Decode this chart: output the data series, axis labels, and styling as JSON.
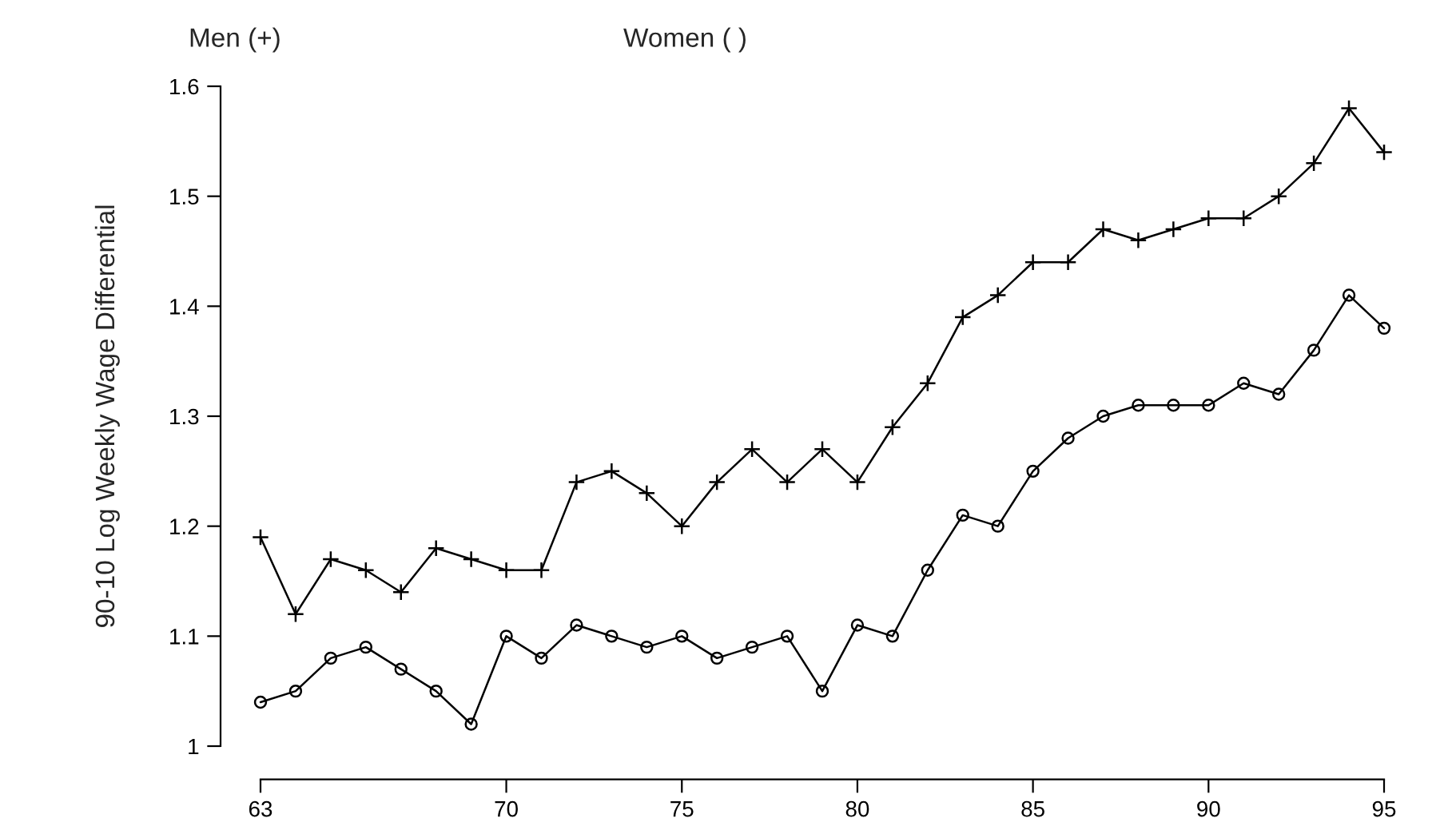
{
  "chart_data": {
    "type": "line",
    "ylabel": "90-10 Log Weekly Wage Differential",
    "annotations": [
      "Men (+)",
      "Women ( )"
    ],
    "x": [
      63,
      64,
      65,
      66,
      67,
      68,
      69,
      70,
      71,
      72,
      73,
      74,
      75,
      76,
      77,
      78,
      79,
      80,
      81,
      82,
      83,
      84,
      85,
      86,
      87,
      88,
      89,
      90,
      91,
      92,
      93,
      94,
      95
    ],
    "series": [
      {
        "color": "#000000",
        "marker": "cross",
        "values": [
          1.19,
          1.12,
          1.17,
          1.16,
          1.14,
          1.18,
          1.17,
          1.16,
          1.16,
          1.24,
          1.25,
          1.23,
          1.2,
          1.24,
          1.27,
          1.24,
          1.27,
          1.24,
          1.29,
          1.33,
          1.39,
          1.41,
          1.44,
          1.44,
          1.47,
          1.46,
          1.47,
          1.48,
          1.48,
          1.5,
          1.53,
          1.58,
          1.54
        ]
      },
      {
        "color": "#000000",
        "marker": "circle",
        "values": [
          1.04,
          1.05,
          1.08,
          1.09,
          1.07,
          1.05,
          1.02,
          1.1,
          1.08,
          1.11,
          1.1,
          1.09,
          1.1,
          1.08,
          1.09,
          1.1,
          1.05,
          1.11,
          1.1,
          1.16,
          1.21,
          1.2,
          1.25,
          1.28,
          1.3,
          1.31,
          1.31,
          1.31,
          1.33,
          1.32,
          1.36,
          1.41,
          1.38
        ]
      }
    ],
    "xlim": [
      63,
      95
    ],
    "ylim": [
      1,
      1.6
    ],
    "xticks": [
      63,
      70,
      75,
      80,
      85,
      90,
      95
    ],
    "yticks": [
      1,
      1.1,
      1.2,
      1.3,
      1.4,
      1.5,
      1.6
    ],
    "grid": false,
    "legend": false,
    "line_style": "solid"
  }
}
